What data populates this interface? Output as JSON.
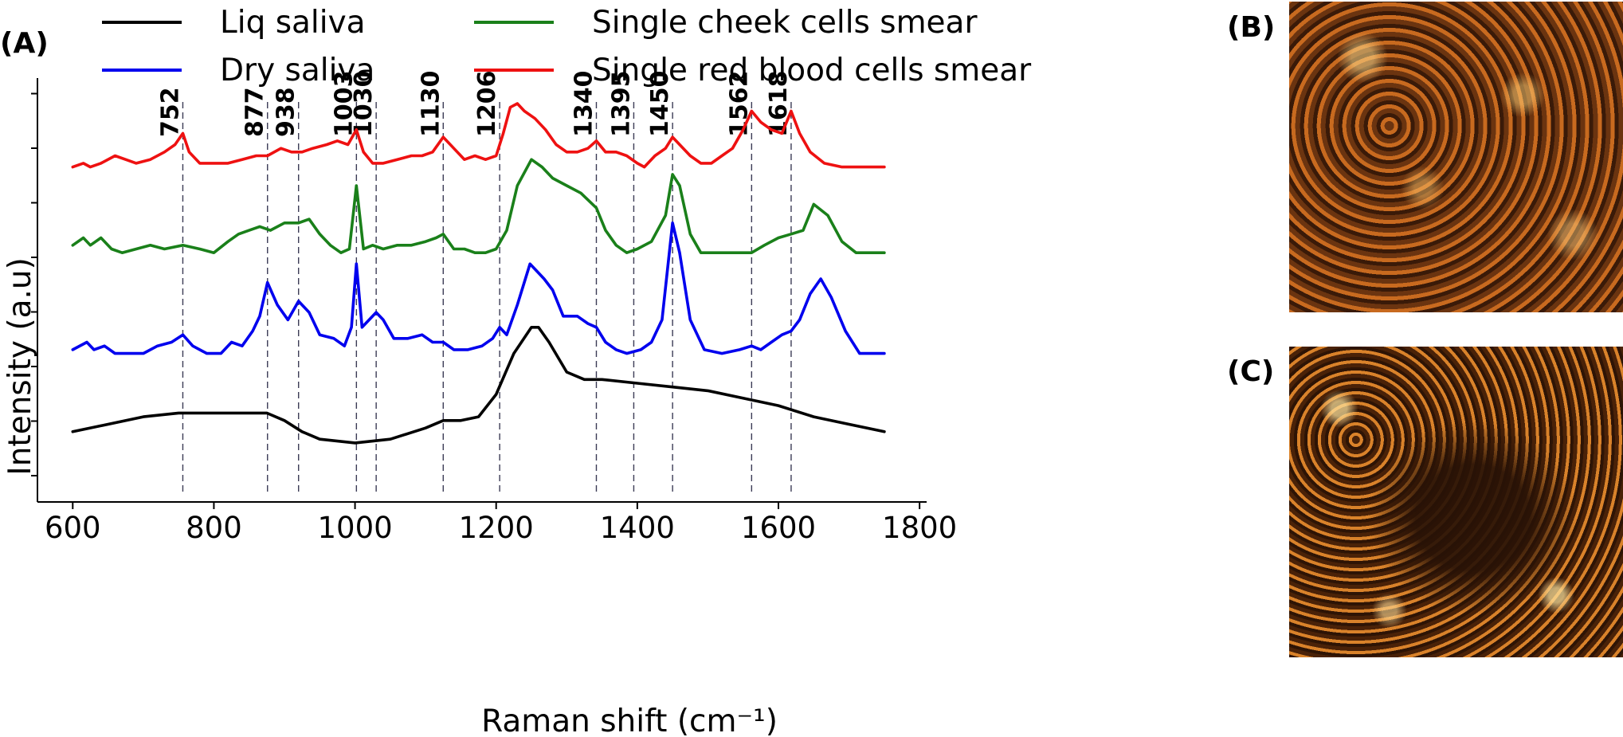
{
  "panels": {
    "a": "(A)",
    "b": "(B)",
    "c": "(C)"
  },
  "legend": [
    {
      "label": "Liq saliva",
      "color": "#000000"
    },
    {
      "label": "Dry saliva",
      "color": "#0000ee"
    },
    {
      "label": "Single cheek cells smear",
      "color": "#1a801a"
    },
    {
      "label": "Single red blood cells smear",
      "color": "#ee1111"
    }
  ],
  "images": [
    {
      "panel": "(B)",
      "description": "red-blood-cell-micrograph"
    },
    {
      "panel": "(C)",
      "description": "cheek-cell-micrograph"
    }
  ],
  "chart_data": {
    "type": "line",
    "title": "",
    "xlabel": "Raman shift (cm⁻¹)",
    "ylabel": "Intensity (a.u)",
    "xlim": [
      550,
      1810
    ],
    "ylim": [
      0,
      1
    ],
    "xticks": [
      "600",
      "800",
      "1000",
      "1200",
      "1400",
      "1600",
      "1800"
    ],
    "xtick_values": [
      600,
      800,
      1000,
      1200,
      1400,
      1600,
      1800
    ],
    "y_minor_tick_count": 8,
    "grid": false,
    "legend_position": "top",
    "peak_labels": [
      "752",
      "877",
      "938",
      "1003",
      "1030",
      "1130",
      "1206",
      "1340",
      "1395",
      "1450",
      "1562",
      "1618"
    ],
    "peak_positions": [
      756,
      876,
      920,
      1002,
      1030,
      1125,
      1205,
      1342,
      1395,
      1450,
      1562,
      1618
    ],
    "series": [
      {
        "name": "Liq saliva",
        "color": "#000000",
        "x": [
          600,
          650,
          700,
          750,
          800,
          850,
          875,
          900,
          925,
          950,
          1000,
          1050,
          1100,
          1125,
          1150,
          1175,
          1200,
          1225,
          1250,
          1260,
          1275,
          1300,
          1325,
          1350,
          1400,
          1450,
          1500,
          1550,
          1600,
          1650,
          1700,
          1750
        ],
        "y": [
          0.12,
          0.14,
          0.16,
          0.17,
          0.17,
          0.17,
          0.17,
          0.15,
          0.12,
          0.1,
          0.09,
          0.1,
          0.13,
          0.15,
          0.15,
          0.16,
          0.22,
          0.33,
          0.4,
          0.4,
          0.36,
          0.28,
          0.26,
          0.26,
          0.25,
          0.24,
          0.23,
          0.21,
          0.19,
          0.16,
          0.14,
          0.12
        ]
      },
      {
        "name": "Dry saliva",
        "color": "#0000ee",
        "x": [
          600,
          620,
          630,
          645,
          660,
          680,
          700,
          720,
          740,
          756,
          770,
          790,
          810,
          825,
          840,
          855,
          865,
          876,
          890,
          905,
          920,
          935,
          950,
          970,
          985,
          995,
          1002,
          1010,
          1020,
          1030,
          1040,
          1055,
          1075,
          1095,
          1110,
          1125,
          1140,
          1160,
          1180,
          1195,
          1205,
          1215,
          1230,
          1248,
          1258,
          1268,
          1280,
          1295,
          1315,
          1330,
          1342,
          1355,
          1370,
          1385,
          1405,
          1420,
          1435,
          1450,
          1460,
          1475,
          1495,
          1520,
          1545,
          1562,
          1575,
          1590,
          1605,
          1618,
          1630,
          1645,
          1660,
          1675,
          1695,
          1715,
          1730,
          1750
        ],
        "y": [
          0.34,
          0.36,
          0.34,
          0.35,
          0.33,
          0.33,
          0.33,
          0.35,
          0.36,
          0.38,
          0.35,
          0.33,
          0.33,
          0.36,
          0.35,
          0.39,
          0.43,
          0.52,
          0.46,
          0.42,
          0.47,
          0.44,
          0.38,
          0.37,
          0.35,
          0.4,
          0.57,
          0.4,
          0.42,
          0.44,
          0.42,
          0.37,
          0.37,
          0.38,
          0.36,
          0.36,
          0.34,
          0.34,
          0.35,
          0.37,
          0.4,
          0.38,
          0.46,
          0.57,
          0.55,
          0.53,
          0.5,
          0.43,
          0.43,
          0.41,
          0.4,
          0.36,
          0.34,
          0.33,
          0.34,
          0.36,
          0.42,
          0.68,
          0.6,
          0.42,
          0.34,
          0.33,
          0.34,
          0.35,
          0.34,
          0.36,
          0.38,
          0.39,
          0.42,
          0.49,
          0.53,
          0.48,
          0.39,
          0.33,
          0.33,
          0.33
        ]
      },
      {
        "name": "Single cheek cells smear",
        "color": "#1a801a",
        "x": [
          600,
          615,
          625,
          640,
          655,
          670,
          690,
          710,
          730,
          756,
          780,
          800,
          820,
          835,
          850,
          865,
          880,
          900,
          920,
          935,
          950,
          965,
          980,
          992,
          1002,
          1012,
          1025,
          1040,
          1060,
          1080,
          1100,
          1115,
          1125,
          1140,
          1155,
          1170,
          1185,
          1200,
          1215,
          1230,
          1250,
          1265,
          1280,
          1300,
          1320,
          1342,
          1355,
          1370,
          1385,
          1400,
          1420,
          1440,
          1450,
          1460,
          1475,
          1490,
          1510,
          1530,
          1550,
          1562,
          1580,
          1600,
          1618,
          1635,
          1650,
          1670,
          1690,
          1710,
          1730,
          1750
        ],
        "y": [
          0.62,
          0.64,
          0.62,
          0.64,
          0.61,
          0.6,
          0.61,
          0.62,
          0.61,
          0.62,
          0.61,
          0.6,
          0.63,
          0.65,
          0.66,
          0.67,
          0.66,
          0.68,
          0.68,
          0.69,
          0.65,
          0.62,
          0.6,
          0.61,
          0.78,
          0.61,
          0.62,
          0.61,
          0.62,
          0.62,
          0.63,
          0.64,
          0.65,
          0.61,
          0.61,
          0.6,
          0.6,
          0.61,
          0.66,
          0.78,
          0.85,
          0.83,
          0.8,
          0.78,
          0.76,
          0.72,
          0.66,
          0.62,
          0.6,
          0.61,
          0.63,
          0.7,
          0.81,
          0.78,
          0.65,
          0.6,
          0.6,
          0.6,
          0.6,
          0.6,
          0.62,
          0.64,
          0.65,
          0.66,
          0.73,
          0.7,
          0.63,
          0.6,
          0.6,
          0.6
        ]
      },
      {
        "name": "Single red blood cells smear",
        "color": "#ee1111",
        "x": [
          600,
          615,
          625,
          640,
          660,
          675,
          690,
          710,
          730,
          745,
          756,
          765,
          780,
          800,
          820,
          840,
          860,
          876,
          895,
          910,
          925,
          940,
          960,
          975,
          990,
          1002,
          1012,
          1025,
          1040,
          1060,
          1080,
          1095,
          1110,
          1125,
          1140,
          1155,
          1170,
          1185,
          1200,
          1210,
          1220,
          1230,
          1240,
          1255,
          1270,
          1285,
          1300,
          1315,
          1330,
          1342,
          1355,
          1370,
          1385,
          1400,
          1410,
          1425,
          1440,
          1450,
          1460,
          1475,
          1490,
          1505,
          1520,
          1535,
          1550,
          1562,
          1575,
          1590,
          1605,
          1618,
          1630,
          1645,
          1665,
          1690,
          1720,
          1750
        ],
        "y": [
          0.83,
          0.84,
          0.83,
          0.84,
          0.86,
          0.85,
          0.84,
          0.85,
          0.87,
          0.89,
          0.92,
          0.87,
          0.84,
          0.84,
          0.84,
          0.85,
          0.86,
          0.86,
          0.88,
          0.87,
          0.87,
          0.88,
          0.89,
          0.9,
          0.89,
          0.93,
          0.87,
          0.84,
          0.84,
          0.85,
          0.86,
          0.86,
          0.87,
          0.91,
          0.88,
          0.85,
          0.86,
          0.85,
          0.86,
          0.92,
          0.99,
          1.0,
          0.98,
          0.96,
          0.93,
          0.89,
          0.87,
          0.87,
          0.88,
          0.9,
          0.87,
          0.87,
          0.86,
          0.84,
          0.83,
          0.86,
          0.88,
          0.91,
          0.89,
          0.86,
          0.84,
          0.84,
          0.86,
          0.88,
          0.93,
          0.98,
          0.95,
          0.93,
          0.92,
          0.98,
          0.92,
          0.87,
          0.84,
          0.83,
          0.83,
          0.83
        ]
      }
    ]
  }
}
